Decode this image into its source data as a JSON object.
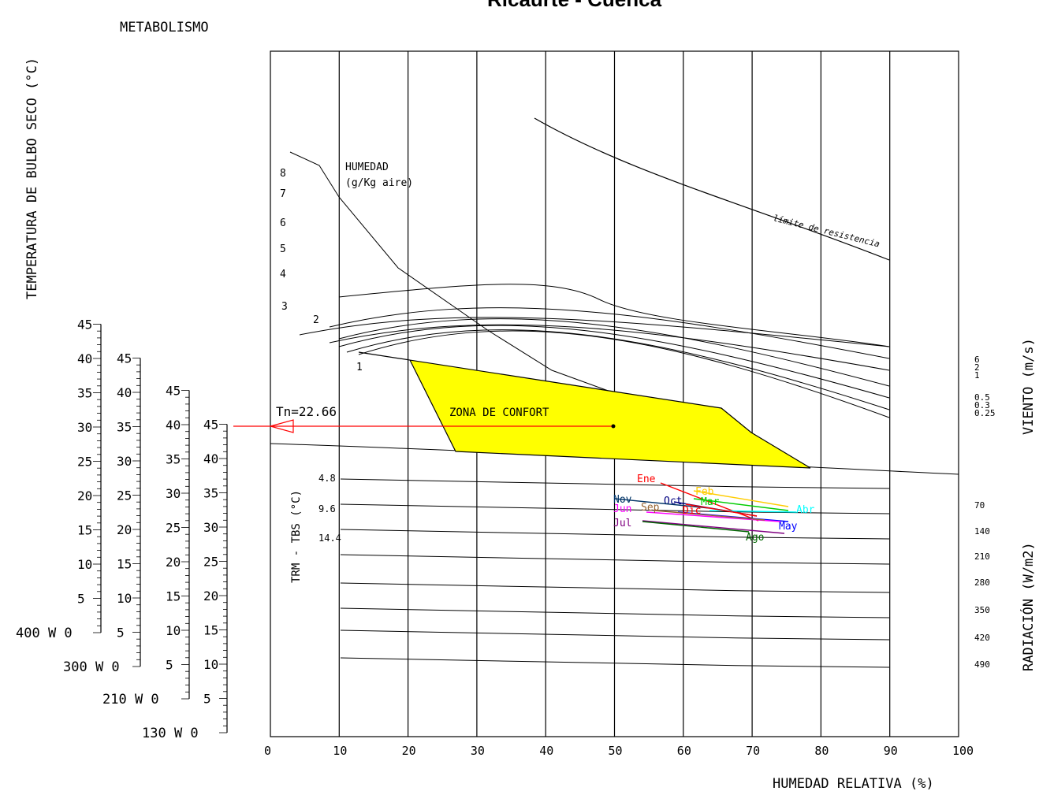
{
  "title": "Ricaurte - Cuenca",
  "labels": {
    "temp_axis": "TEMPERATURA DE BULBO SECO (°C)",
    "metabolism": "METABOLISMO",
    "humidity_axis": "HUMEDAD RELATIVA (%)",
    "viento": "VIENTO (m/s)",
    "radiacion": "RADIACIÓN (W/m2)",
    "trm_tbs": "TRM - TBS (°C)",
    "humedad_abs": "HUMEDAD",
    "humedad_abs_unit": "(g/Kg aire)",
    "comfort": "ZONA DE CONFORT",
    "limite": "límite de resistencia",
    "tn": "Tn=22.66"
  },
  "colors": {
    "comfort_fill": "#ffff00",
    "tn_line": "#ff0000",
    "Ene": "#ff0000",
    "Feb": "#ffcc00",
    "Mar": "#00cc00",
    "Abr": "#00ffff",
    "May": "#0000ff",
    "Jun": "#ff00ff",
    "Jul": "#800080",
    "Ago": "#006600",
    "Sep": "#996633",
    "Oct": "#000080",
    "Nov": "#003366",
    "Dic": "#ff0000"
  },
  "chart_data": {
    "type": "bioclimatic",
    "x_axis": {
      "label": "HUMEDAD RELATIVA (%)",
      "ticks": [
        "0",
        "10",
        "20",
        "30",
        "40",
        "50",
        "60",
        "70",
        "80",
        "90",
        "100"
      ],
      "range": [
        0,
        100
      ]
    },
    "metabolism_scales": [
      {
        "label": "400 W",
        "zero": "0",
        "ticks": [
          "5",
          "10",
          "15",
          "20",
          "25",
          "30",
          "35",
          "40",
          "45"
        ]
      },
      {
        "label": "300 W",
        "zero": "0",
        "ticks": [
          "5",
          "10",
          "15",
          "20",
          "25",
          "30",
          "35",
          "40",
          "45"
        ]
      },
      {
        "label": "210 W",
        "zero": "0",
        "ticks": [
          "5",
          "10",
          "15",
          "20",
          "25",
          "30",
          "35",
          "40",
          "45"
        ]
      },
      {
        "label": "130 W",
        "zero": "0",
        "ticks": [
          "5",
          "10",
          "15",
          "20",
          "25",
          "30",
          "35",
          "40",
          "45"
        ]
      }
    ],
    "humidity_lines": [
      "1",
      "2",
      "3",
      "4",
      "5",
      "6",
      "7",
      "8"
    ],
    "trm_ticks": [
      "4.8",
      "9.6",
      "14.4"
    ],
    "wind_ticks": [
      "6",
      "2",
      "1",
      "0.5",
      "0.3",
      "0.25"
    ],
    "radiation_ticks": [
      "70",
      "140",
      "210",
      "280",
      "350",
      "420",
      "490"
    ],
    "neutral_temperature": 22.66,
    "comfort_zone": [
      [
        20,
        20.4
      ],
      [
        26.5,
        15.5
      ],
      [
        78,
        14.6
      ],
      [
        70,
        17.8
      ],
      [
        65.5,
        20.9
      ],
      [
        13,
        22.6
      ]
    ],
    "months": [
      {
        "name": "Ene",
        "rh": [
          56,
          72
        ],
        "y_scale": [
          8.9,
          11.2
        ]
      },
      {
        "name": "Feb",
        "rh": [
          60,
          74
        ],
        "y_scale": [
          9.6,
          10.6
        ]
      },
      {
        "name": "Mar",
        "rh": [
          59,
          73
        ],
        "y_scale": [
          10.1,
          10.5
        ]
      },
      {
        "name": "Abr",
        "rh": [
          64,
          76
        ],
        "y_scale": [
          10.2,
          10.6
        ]
      },
      {
        "name": "May",
        "rh": [
          55,
          76
        ],
        "y_scale": [
          11.1,
          11.6
        ]
      },
      {
        "name": "Jun",
        "rh": [
          50,
          73
        ],
        "y_scale": [
          10.7,
          11.4
        ]
      },
      {
        "name": "Jul",
        "rh": [
          54,
          75
        ],
        "y_scale": [
          11.7,
          12.5
        ]
      },
      {
        "name": "Ago",
        "rh": [
          54,
          70
        ],
        "y_scale": [
          11.6,
          12.4
        ]
      },
      {
        "name": "Sep",
        "rh": [
          52,
          72
        ],
        "y_scale": [
          10.5,
          11.2
        ]
      },
      {
        "name": "Oct",
        "rh": [
          56,
          71
        ],
        "y_scale": [
          10.1,
          10.9
        ]
      },
      {
        "name": "Nov",
        "rh": [
          50,
          68
        ],
        "y_scale": [
          10.0,
          10.7
        ]
      },
      {
        "name": "Dic",
        "rh": [
          58,
          71
        ],
        "y_scale": [
          10.6,
          11.0
        ]
      }
    ]
  }
}
